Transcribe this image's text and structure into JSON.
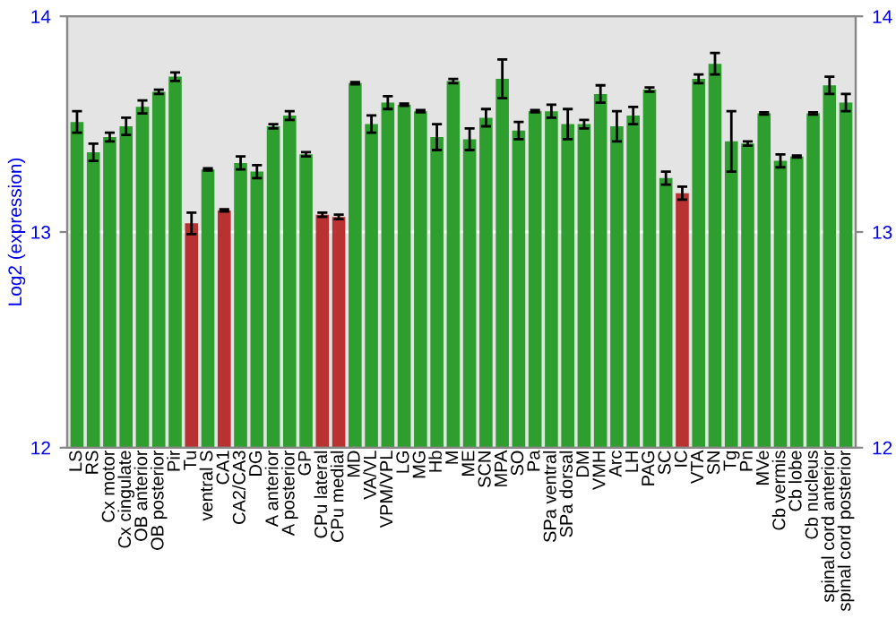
{
  "chart_data": {
    "type": "bar",
    "ylabel": "Log2 (expression)",
    "categories": [
      "LS",
      "RS",
      "Cx motor",
      "Cx cingulate",
      "OB anterior",
      "OB posterior",
      "Pir",
      "Tu",
      "ventral S",
      "CA1",
      "CA2/CA3",
      "DG",
      "A anterior",
      "A posterior",
      "GP",
      "CPu lateral",
      "CPu medial",
      "MD",
      "VA/VL",
      "VPM/VPL",
      "LG",
      "MG",
      "Hb",
      "M",
      "ME",
      "SCN",
      "MPA",
      "SO",
      "Pa",
      "SPa ventral",
      "SPa dorsal",
      "DM",
      "VMH",
      "Arc",
      "LH",
      "PAG",
      "SC",
      "IC",
      "VTA",
      "SN",
      "Tg",
      "Pn",
      "MVe",
      "Cb vermis",
      "Cb lobe",
      "Cb nucleus",
      "spinal cord anterior",
      "spinal cord posterior"
    ],
    "values": [
      13.51,
      13.37,
      13.44,
      13.49,
      13.58,
      13.65,
      13.72,
      13.04,
      13.29,
      13.1,
      13.32,
      13.28,
      13.49,
      13.54,
      13.36,
      13.08,
      13.07,
      13.69,
      13.5,
      13.6,
      13.59,
      13.56,
      13.44,
      13.7,
      13.43,
      13.53,
      13.71,
      13.47,
      13.56,
      13.56,
      13.5,
      13.5,
      13.64,
      13.49,
      13.54,
      13.66,
      13.25,
      13.18,
      13.71,
      13.78,
      13.42,
      13.41,
      13.55,
      13.33,
      13.35,
      13.55,
      13.68,
      13.6
    ],
    "errors": [
      0.05,
      0.04,
      0.02,
      0.04,
      0.03,
      0.01,
      0.02,
      0.05,
      0.005,
      0.005,
      0.03,
      0.03,
      0.01,
      0.02,
      0.01,
      0.01,
      0.01,
      0.005,
      0.04,
      0.03,
      0.005,
      0.005,
      0.06,
      0.01,
      0.05,
      0.04,
      0.09,
      0.04,
      0.005,
      0.03,
      0.07,
      0.02,
      0.04,
      0.07,
      0.04,
      0.01,
      0.03,
      0.03,
      0.02,
      0.05,
      0.14,
      0.01,
      0.005,
      0.03,
      0.005,
      0.005,
      0.04,
      0.04
    ],
    "colors": [
      "#2e9e2e",
      "#2e9e2e",
      "#2e9e2e",
      "#2e9e2e",
      "#2e9e2e",
      "#2e9e2e",
      "#2e9e2e",
      "#b83232",
      "#2e9e2e",
      "#b83232",
      "#2e9e2e",
      "#2e9e2e",
      "#2e9e2e",
      "#2e9e2e",
      "#2e9e2e",
      "#b83232",
      "#b83232",
      "#2e9e2e",
      "#2e9e2e",
      "#2e9e2e",
      "#2e9e2e",
      "#2e9e2e",
      "#2e9e2e",
      "#2e9e2e",
      "#2e9e2e",
      "#2e9e2e",
      "#2e9e2e",
      "#2e9e2e",
      "#2e9e2e",
      "#2e9e2e",
      "#2e9e2e",
      "#2e9e2e",
      "#2e9e2e",
      "#2e9e2e",
      "#2e9e2e",
      "#2e9e2e",
      "#2e9e2e",
      "#b83232",
      "#2e9e2e",
      "#2e9e2e",
      "#2e9e2e",
      "#2e9e2e",
      "#2e9e2e",
      "#2e9e2e",
      "#2e9e2e",
      "#2e9e2e",
      "#2e9e2e",
      "#2e9e2e"
    ],
    "ylim": [
      12,
      14
    ],
    "yticks": [
      12,
      13,
      14
    ],
    "y2lim": [
      12,
      14
    ],
    "y2ticks": [
      12,
      13,
      14
    ],
    "grid": "y"
  }
}
